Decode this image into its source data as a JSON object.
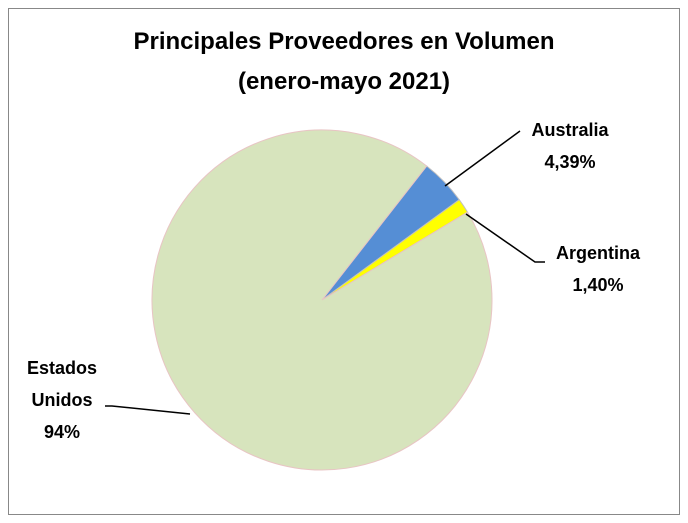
{
  "chart_data": {
    "type": "pie",
    "title": "Principales Proveedores en Volumen",
    "subtitle": "(enero-mayo 2021)",
    "categories": [
      "Australia",
      "Argentina",
      "Estados Unidos"
    ],
    "values": [
      4.39,
      1.4,
      94
    ],
    "value_labels": [
      "4,39%",
      "1,40%",
      "94%"
    ],
    "colors": [
      "#558ed5",
      "#ffff00",
      "#d7e4bd"
    ]
  }
}
